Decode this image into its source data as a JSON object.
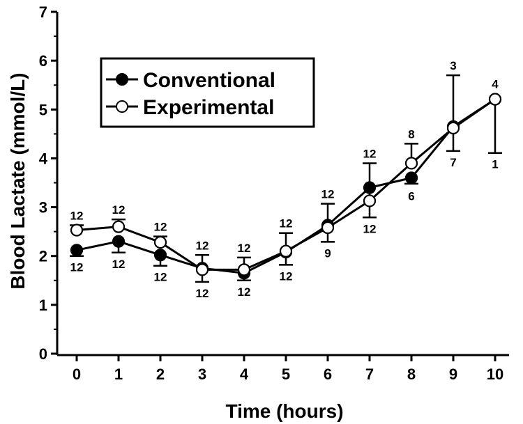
{
  "chart_data": {
    "type": "line",
    "title": "",
    "xlabel": "Time (hours)",
    "ylabel": "Blood Lactate (mmol/L)",
    "xlim": [
      0,
      10
    ],
    "ylim": [
      0,
      7
    ],
    "x_ticks": [
      "0",
      "1",
      "2",
      "3",
      "4",
      "5",
      "6",
      "7",
      "8",
      "9",
      "10"
    ],
    "y_ticks": [
      "0",
      "1",
      "2",
      "3",
      "4",
      "5",
      "6",
      "7"
    ],
    "grid": false,
    "legend_position": "top-left",
    "series": [
      {
        "name": "Conventional",
        "marker": "filled-circle",
        "color": "#000000",
        "x": [
          0,
          1,
          2,
          3,
          4,
          5,
          6,
          7,
          8,
          9,
          10
        ],
        "y": [
          2.12,
          2.3,
          2.02,
          1.75,
          1.65,
          2.08,
          2.63,
          3.4,
          3.6,
          4.65,
          5.21
        ],
        "err_low": [
          2.0,
          2.07,
          1.8,
          1.47,
          1.5,
          1.82,
          2.29,
          2.79,
          3.48,
          4.15,
          4.11
        ],
        "err_high": [
          null,
          null,
          null,
          null,
          null,
          null,
          null,
          3.9,
          null,
          null,
          null
        ],
        "n_labels": [
          "12",
          "12",
          "12",
          "12",
          "12",
          "12",
          "12",
          "12",
          "6",
          "7",
          "1"
        ]
      },
      {
        "name": "Experimental",
        "marker": "open-circle",
        "color": "#000000",
        "x": [
          0,
          1,
          2,
          3,
          4,
          5,
          6,
          7,
          8,
          9,
          10
        ],
        "y": [
          2.53,
          2.6,
          2.28,
          1.72,
          1.72,
          2.1,
          2.58,
          3.13,
          3.9,
          4.62,
          5.21
        ],
        "err_low": [
          null,
          null,
          null,
          null,
          null,
          null,
          null,
          null,
          null,
          null,
          null
        ],
        "err_high": [
          2.63,
          2.75,
          2.4,
          2.02,
          1.97,
          2.47,
          3.07,
          null,
          4.3,
          5.7,
          null
        ],
        "n_labels": [
          "12",
          "12",
          "12",
          "12",
          "12",
          "12",
          "9",
          "12",
          "8",
          "3",
          "4"
        ]
      }
    ]
  }
}
